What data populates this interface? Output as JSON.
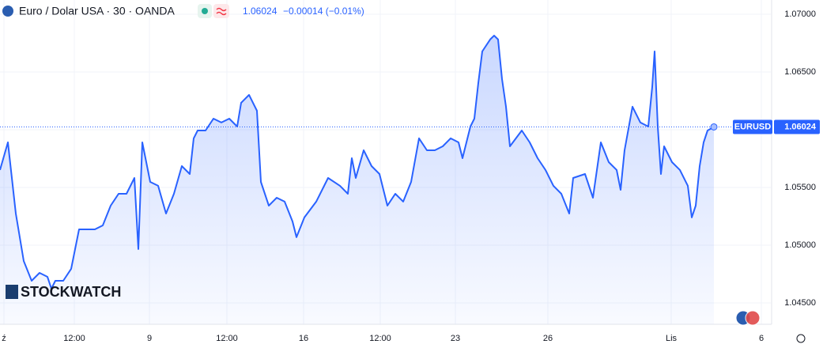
{
  "chart_data": {
    "type": "area",
    "title": "Euro / Dolar USA · 30 · OANDA",
    "last_value": 1.06024,
    "change": "−0.00014 (−0.01%)",
    "symbol": "EURUSD",
    "watermark": "STOCKWATCH",
    "color": "#2962ff",
    "grid": true,
    "xlim": [
      0,
      975
    ],
    "ylim": [
      1.04315,
      1.07123
    ],
    "xticks": [
      {
        "value": 5,
        "label": "ź"
      },
      {
        "value": 94,
        "label": "12:00"
      },
      {
        "value": 189,
        "label": "9"
      },
      {
        "value": 287,
        "label": "12:00"
      },
      {
        "value": 384,
        "label": "16"
      },
      {
        "value": 481,
        "label": "12:00"
      },
      {
        "value": 576,
        "label": "23"
      },
      {
        "value": 693,
        "label": "26"
      },
      {
        "value": 849,
        "label": "Lis"
      },
      {
        "value": 963,
        "label": "6"
      }
    ],
    "yticks": [
      {
        "value": 1.045,
        "label": "1.04500"
      },
      {
        "value": 1.05,
        "label": "1.05000"
      },
      {
        "value": 1.055,
        "label": "1.05500"
      },
      {
        "value": 1.06,
        "label": "1.06000"
      },
      {
        "value": 1.065,
        "label": "1.06500"
      },
      {
        "value": 1.07,
        "label": "1.07000"
      }
    ],
    "x": [
      0,
      10,
      20,
      30,
      40,
      50,
      60,
      65,
      70,
      80,
      90,
      100,
      110,
      120,
      130,
      140,
      150,
      160,
      170,
      175,
      180,
      190,
      200,
      210,
      220,
      230,
      240,
      245,
      250,
      260,
      270,
      280,
      290,
      300,
      305,
      315,
      325,
      330,
      340,
      350,
      360,
      370,
      375,
      385,
      400,
      415,
      430,
      440,
      445,
      450,
      460,
      470,
      480,
      490,
      500,
      510,
      520,
      530,
      540,
      550,
      560,
      570,
      580,
      585,
      595,
      600,
      605,
      610,
      620,
      625,
      630,
      635,
      640,
      645,
      660,
      670,
      680,
      690,
      700,
      710,
      720,
      725,
      740,
      750,
      760,
      770,
      780,
      785,
      790,
      800,
      810,
      820,
      825,
      828,
      832,
      836,
      840,
      850,
      860,
      870,
      875,
      880,
      885,
      890,
      895,
      903
    ],
    "values": [
      1.05651,
      1.0589,
      1.05274,
      1.04863,
      1.04692,
      1.0476,
      1.04726,
      1.04623,
      1.04692,
      1.04692,
      1.04795,
      1.05137,
      1.05137,
      1.05137,
      1.05171,
      1.05342,
      1.05445,
      1.05445,
      1.05582,
      1.04966,
      1.0589,
      1.05548,
      1.05514,
      1.05274,
      1.05445,
      1.05685,
      1.05616,
      1.05925,
      1.05993,
      1.05993,
      1.06096,
      1.06062,
      1.06096,
      1.06027,
      1.06233,
      1.06301,
      1.06164,
      1.05548,
      1.05342,
      1.05411,
      1.05377,
      1.05205,
      1.05069,
      1.0524,
      1.05377,
      1.05582,
      1.05514,
      1.05445,
      1.05753,
      1.05582,
      1.05822,
      1.05685,
      1.05616,
      1.05342,
      1.05445,
      1.05377,
      1.05548,
      1.05925,
      1.05822,
      1.05822,
      1.05856,
      1.05925,
      1.0589,
      1.05753,
      1.06027,
      1.06096,
      1.06404,
      1.06678,
      1.06781,
      1.06815,
      1.06781,
      1.06438,
      1.06199,
      1.05856,
      1.05993,
      1.0589,
      1.05753,
      1.05651,
      1.05514,
      1.05445,
      1.05274,
      1.05582,
      1.05616,
      1.05411,
      1.0589,
      1.05719,
      1.05651,
      1.05479,
      1.05822,
      1.06199,
      1.06062,
      1.06027,
      1.0637,
      1.06678,
      1.06027,
      1.05616,
      1.05856,
      1.05719,
      1.05651,
      1.05514,
      1.0524,
      1.05342,
      1.05685,
      1.0589,
      1.05993,
      1.06024
    ]
  }
}
